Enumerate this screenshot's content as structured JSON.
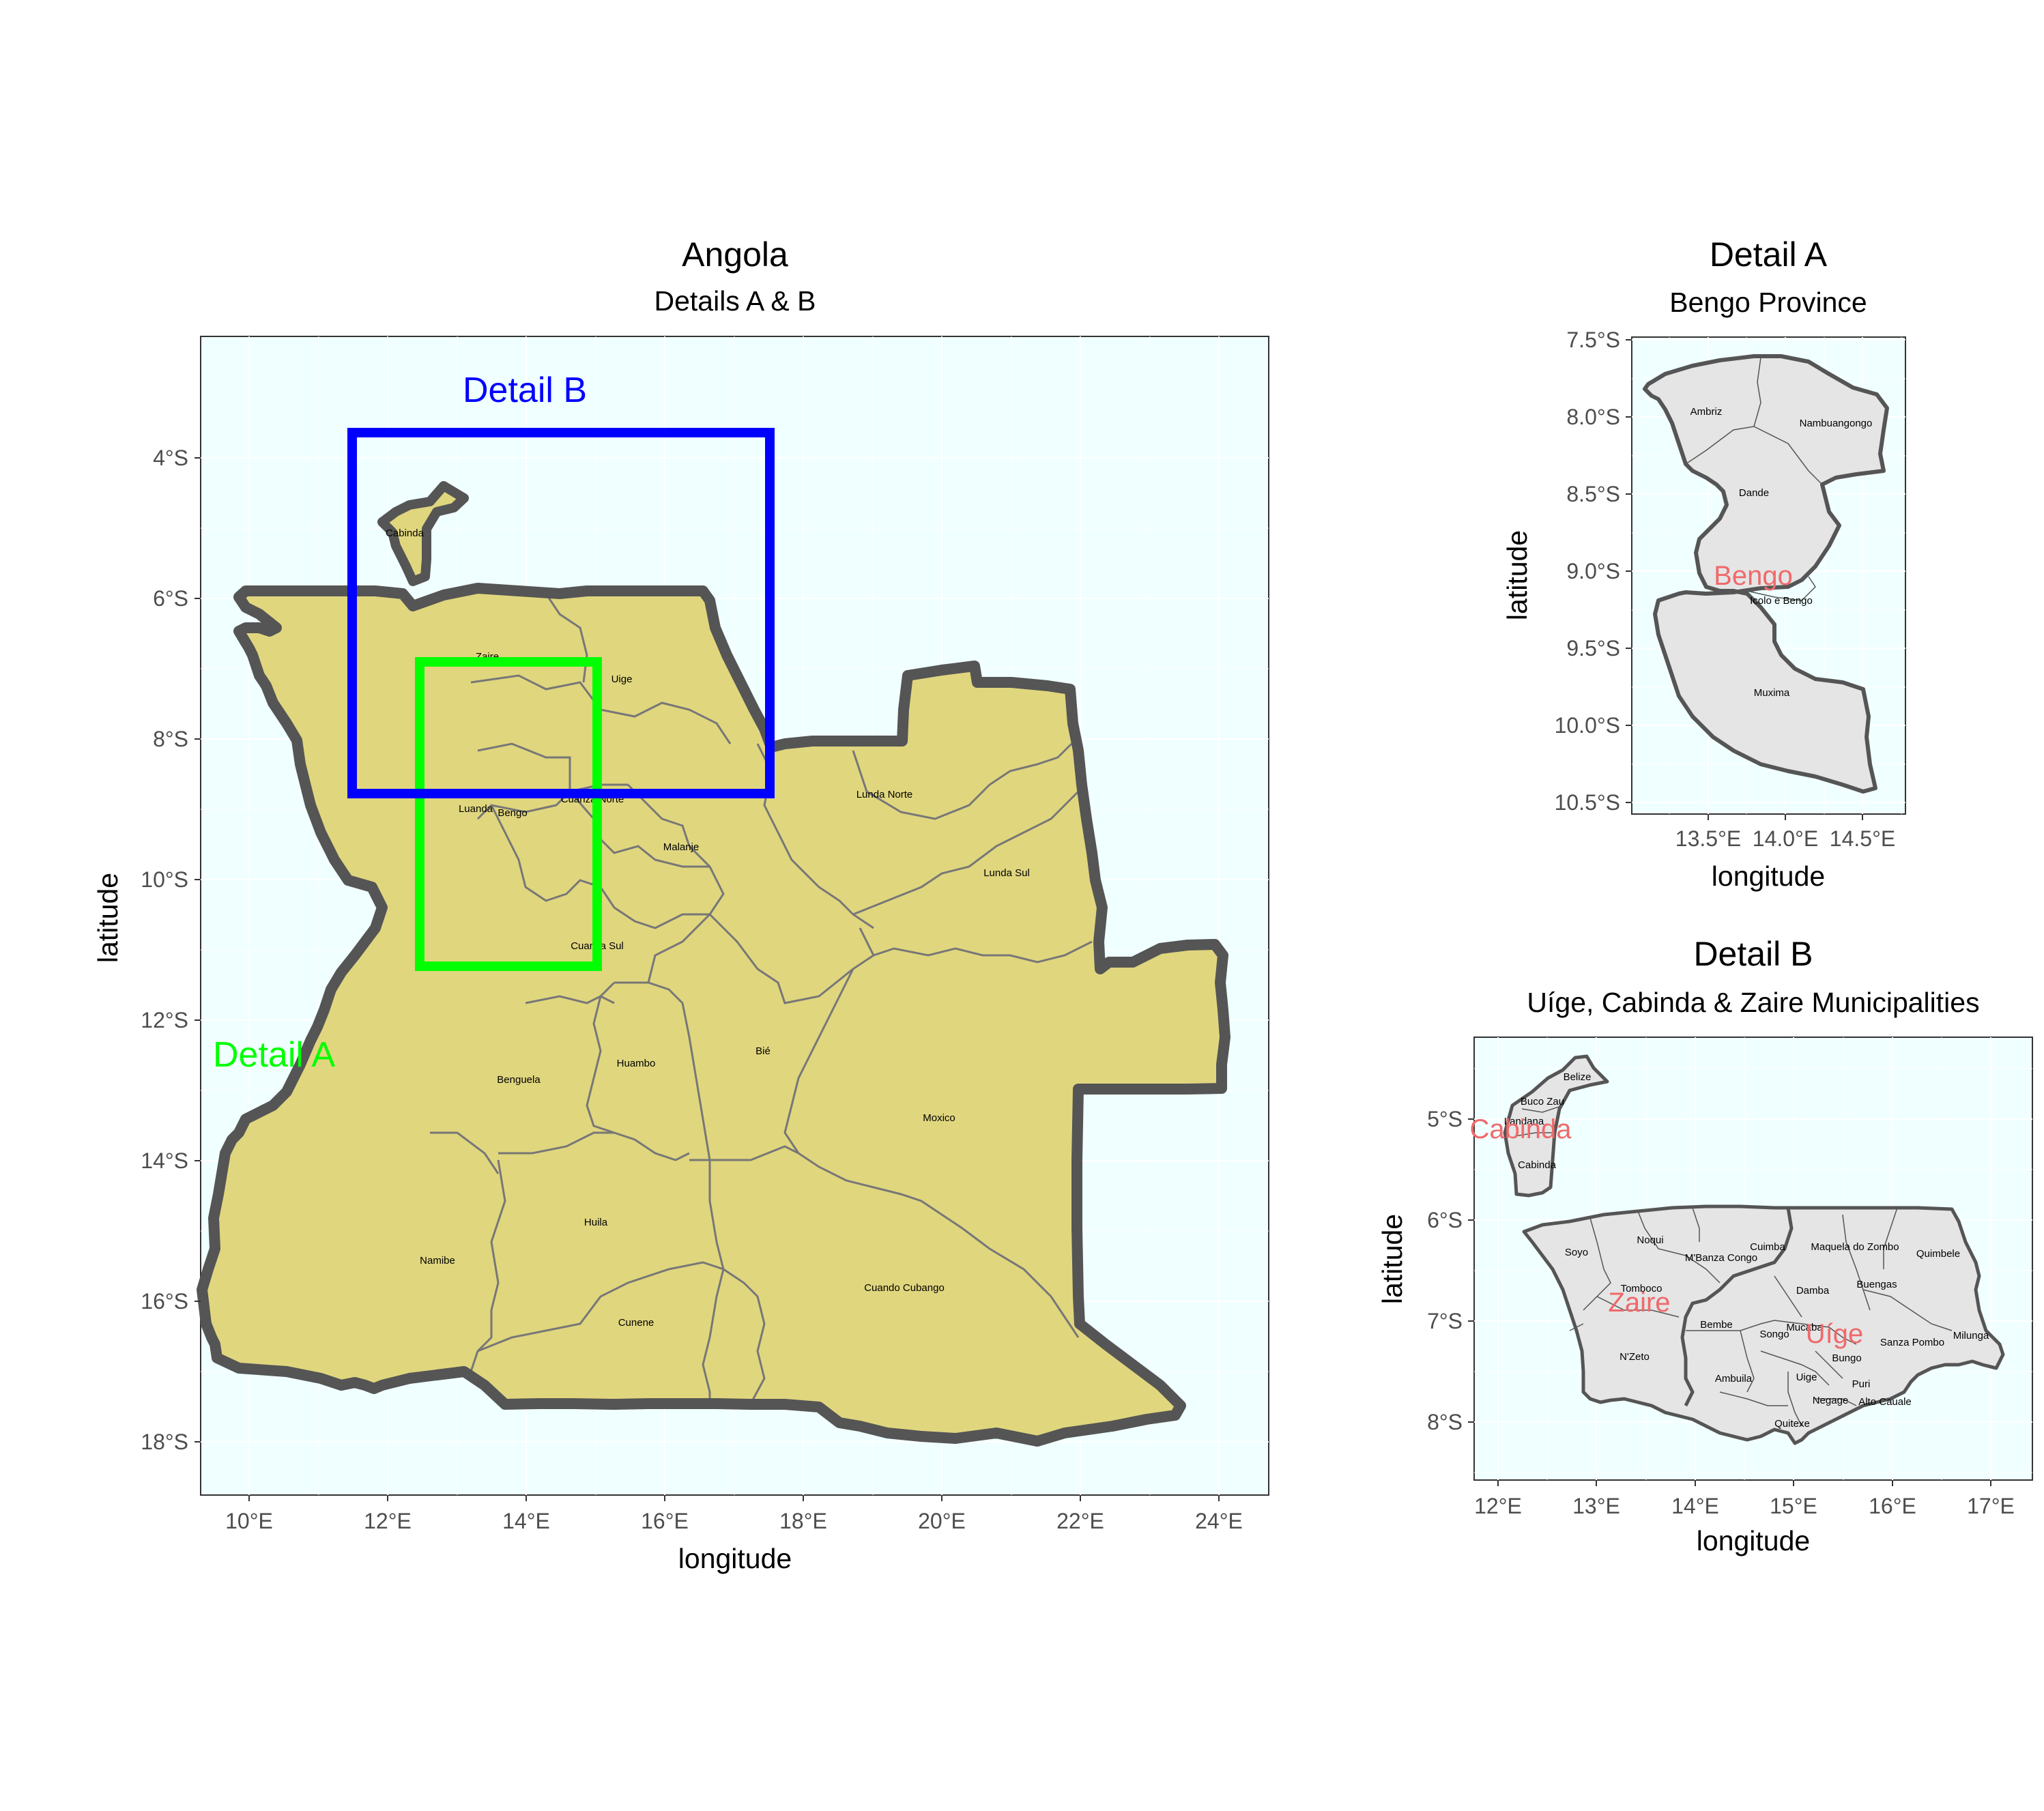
{
  "main_map": {
    "title": "Angola",
    "subtitle": "Details A & B",
    "xlabel": "longitude",
    "ylabel": "latitude",
    "x_ticks": [
      "10°E",
      "12°E",
      "14°E",
      "16°E",
      "18°E",
      "20°E",
      "22°E",
      "24°E"
    ],
    "y_ticks": [
      "4°S",
      "6°S",
      "8°S",
      "10°S",
      "12°S",
      "14°S",
      "16°S",
      "18°S"
    ],
    "panel_bg": "#f0ffff",
    "fill": "#e0d67e",
    "border_color": "#555555",
    "provinces": [
      "Cabinda",
      "Zaire",
      "Uige",
      "Luanda",
      "Bengo",
      "Cuanza Norte",
      "Malanje",
      "Lunda Norte",
      "Lunda Sul",
      "Cuanza Sul",
      "Benguela",
      "Huambo",
      "Bié",
      "Moxico",
      "Namibe",
      "Huila",
      "Cunene",
      "Cuando Cubango"
    ],
    "detail_a": {
      "label": "Detail A",
      "color": "#00ff00"
    },
    "detail_b": {
      "label": "Detail B",
      "color": "#0000ff"
    }
  },
  "detail_a": {
    "title": "Detail A",
    "subtitle": "Bengo Province",
    "xlabel": "longitude",
    "ylabel": "latitude",
    "x_ticks": [
      "13.5°E",
      "14.0°E",
      "14.5°E"
    ],
    "y_ticks": [
      "7.5°S",
      "8.0°S",
      "8.5°S",
      "9.0°S",
      "9.5°S",
      "10.0°S",
      "10.5°S"
    ],
    "province_label": "Bengo",
    "label_color": "#f0696b",
    "fill": "#e5e5e5",
    "municipalities": [
      "Ambriz",
      "Nambuangongo",
      "Dande",
      "Icolo e Bengo",
      "Muxima"
    ]
  },
  "detail_b": {
    "title": "Detail B",
    "subtitle": "Uíge, Cabinda & Zaire Municipalities",
    "xlabel": "longitude",
    "ylabel": "latitude",
    "x_ticks": [
      "12°E",
      "13°E",
      "14°E",
      "15°E",
      "16°E",
      "17°E"
    ],
    "y_ticks": [
      "5°S",
      "6°S",
      "7°S",
      "8°S"
    ],
    "province_labels": [
      "Cabinda",
      "Zaire",
      "Uíge"
    ],
    "label_color": "#f0696b",
    "fill": "#e5e5e5",
    "municipalities": [
      "Belize",
      "Buco Zau",
      "Landana",
      "Cabinda",
      "Soyo",
      "Noqui",
      "Cuimba",
      "M'Banza Congo",
      "Maquela do Zombo",
      "Quimbele",
      "Tomboco",
      "Buengas",
      "Damba",
      "Bembe",
      "Songo",
      "Mucaba",
      "Sanza Pombo",
      "Milunga",
      "N'Zeto",
      "Bungo",
      "Ambuila",
      "Uige",
      "Puri",
      "Negage",
      "Alto Cauale",
      "Quitexe"
    ]
  }
}
